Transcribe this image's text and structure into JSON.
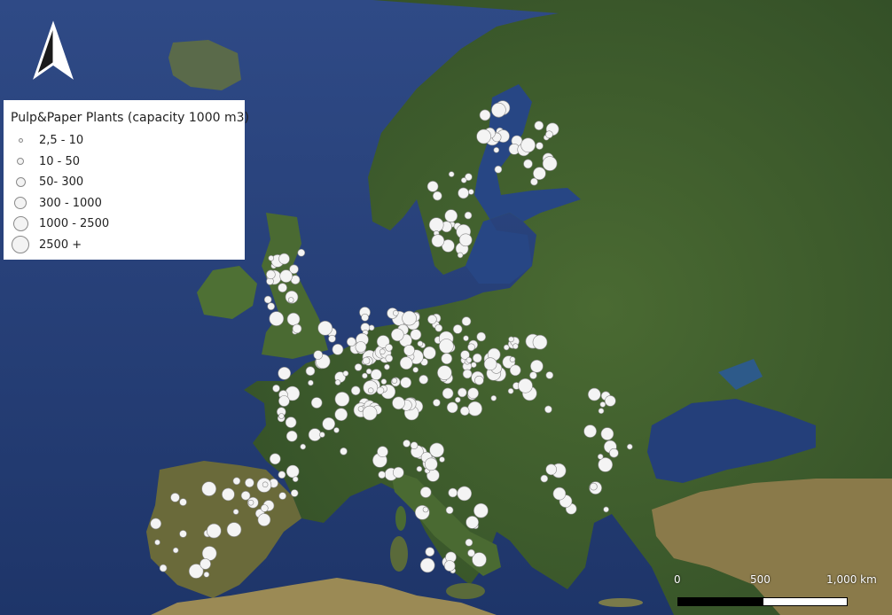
{
  "legend": {
    "title": "Pulp&Paper Plants (capacity 1000 m3)",
    "classes": [
      {
        "label": "2,5 - 10",
        "dot_size_rank": 1
      },
      {
        "label": "10 - 50",
        "dot_size_rank": 2
      },
      {
        "label": "50- 300",
        "dot_size_rank": 3
      },
      {
        "label": "300 - 1000",
        "dot_size_rank": 4
      },
      {
        "label": "1000 - 2500",
        "dot_size_rank": 5
      },
      {
        "label": "2500 +",
        "dot_size_rank": 6
      }
    ]
  },
  "scale_bar": {
    "labels": [
      "0",
      "500",
      "1,000 km"
    ]
  },
  "north_arrow": {
    "icon": "north-arrow-icon"
  },
  "colors": {
    "sea": "#27407a",
    "land": "#3b5a2c",
    "plant_fill": "#f4f4f4",
    "plant_stroke": "#8a8a8a"
  }
}
